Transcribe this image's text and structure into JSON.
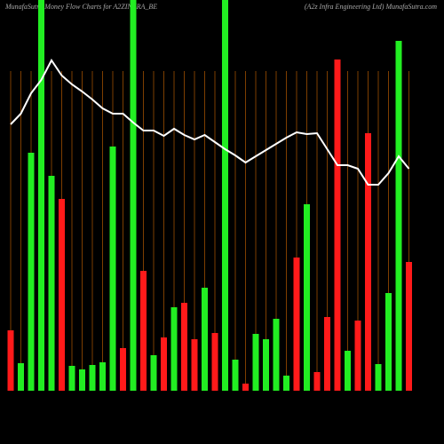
{
  "chart_data": {
    "type": "bar",
    "title": "MunafaSutra  Money Flow  Charts for A2ZINFRA_BE",
    "subtitle": "(A2z Infra  Engineering Ltd) MunafaSutra.com",
    "categories": [
      null,
      null,
      null,
      null,
      null,
      null,
      null,
      null,
      null,
      null,
      null,
      null,
      null,
      null,
      null,
      null,
      null,
      null,
      null,
      null,
      null,
      null,
      null,
      null,
      null,
      null,
      null,
      null,
      null,
      null,
      null,
      null,
      null,
      null,
      null,
      null,
      null,
      null,
      null,
      null
    ],
    "values": [
      68,
      31,
      268,
      440,
      242,
      216,
      28,
      24,
      29,
      32,
      275,
      48,
      440,
      135,
      40,
      60,
      94,
      99,
      58,
      116,
      65,
      440,
      35,
      8,
      64,
      58,
      81,
      17,
      150,
      210,
      21,
      83,
      373,
      45,
      79,
      290,
      30,
      110,
      394,
      145
    ],
    "bar_colors": [
      "#ff1a1a",
      "#22ee22",
      "#22ee22",
      "#22ee22",
      "#22ee22",
      "#ff1a1a",
      "#22ee22",
      "#22ee22",
      "#22ee22",
      "#22ee22",
      "#22ee22",
      "#ff1a1a",
      "#22ee22",
      "#ff1a1a",
      "#22ee22",
      "#ff1a1a",
      "#22ee22",
      "#ff1a1a",
      "#ff1a1a",
      "#22ee22",
      "#ff1a1a",
      "#22ee22",
      "#22ee22",
      "#ff1a1a",
      "#22ee22",
      "#22ee22",
      "#22ee22",
      "#22ee22",
      "#ff1a1a",
      "#22ee22",
      "#ff1a1a",
      "#ff1a1a",
      "#ff1a1a",
      "#22ee22",
      "#ff1a1a",
      "#ff1a1a",
      "#22ee22",
      "#22ee22",
      "#22ee22",
      "#ff1a1a"
    ],
    "line": {
      "color": "#ffffff",
      "values": [
        300,
        312,
        335,
        350,
        372,
        355,
        345,
        337,
        328,
        318,
        312,
        312,
        302,
        293,
        293,
        287,
        295,
        288,
        283,
        288,
        280,
        272,
        265,
        257,
        264,
        271,
        278,
        285,
        291,
        289,
        290,
        272,
        254,
        254,
        250,
        232,
        232,
        245,
        264,
        250
      ]
    },
    "ylim": [
      0,
      440
    ],
    "grid_color": "#b35900"
  }
}
